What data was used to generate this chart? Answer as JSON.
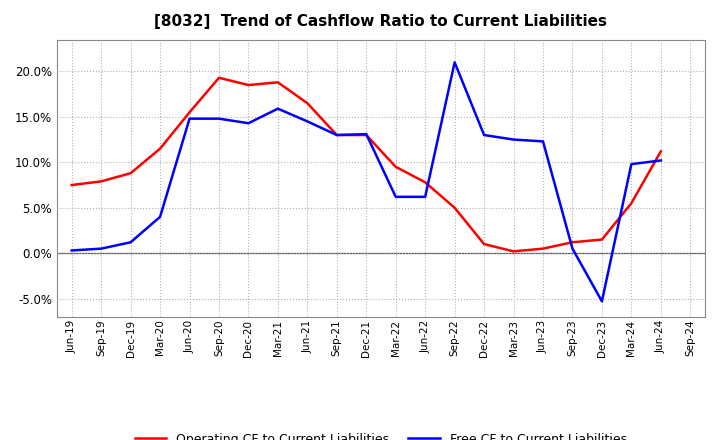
{
  "title": "[8032]  Trend of Cashflow Ratio to Current Liabilities",
  "x_labels": [
    "Jun-19",
    "Sep-19",
    "Dec-19",
    "Mar-20",
    "Jun-20",
    "Sep-20",
    "Dec-20",
    "Mar-21",
    "Jun-21",
    "Sep-21",
    "Dec-21",
    "Mar-22",
    "Jun-22",
    "Sep-22",
    "Dec-22",
    "Mar-23",
    "Jun-23",
    "Sep-23",
    "Dec-23",
    "Mar-24",
    "Jun-24",
    "Sep-24"
  ],
  "operating_cf": [
    7.5,
    7.9,
    8.8,
    11.5,
    15.5,
    19.3,
    18.5,
    18.8,
    16.5,
    13.0,
    13.0,
    9.5,
    7.8,
    5.0,
    1.0,
    0.2,
    0.5,
    1.2,
    1.5,
    5.5,
    11.2,
    null
  ],
  "free_cf": [
    0.3,
    0.5,
    1.2,
    4.0,
    14.8,
    14.8,
    14.3,
    15.9,
    14.5,
    13.0,
    13.1,
    6.2,
    6.2,
    21.0,
    13.0,
    12.5,
    12.3,
    0.5,
    -5.3,
    9.8,
    10.2,
    null
  ],
  "operating_color": "#ff0000",
  "free_color": "#0000ff",
  "ylim": [
    -7.0,
    23.5
  ],
  "yticks": [
    -5.0,
    0.0,
    5.0,
    10.0,
    15.0,
    20.0
  ],
  "background_color": "#ffffff",
  "grid_color": "#b0b0b0"
}
